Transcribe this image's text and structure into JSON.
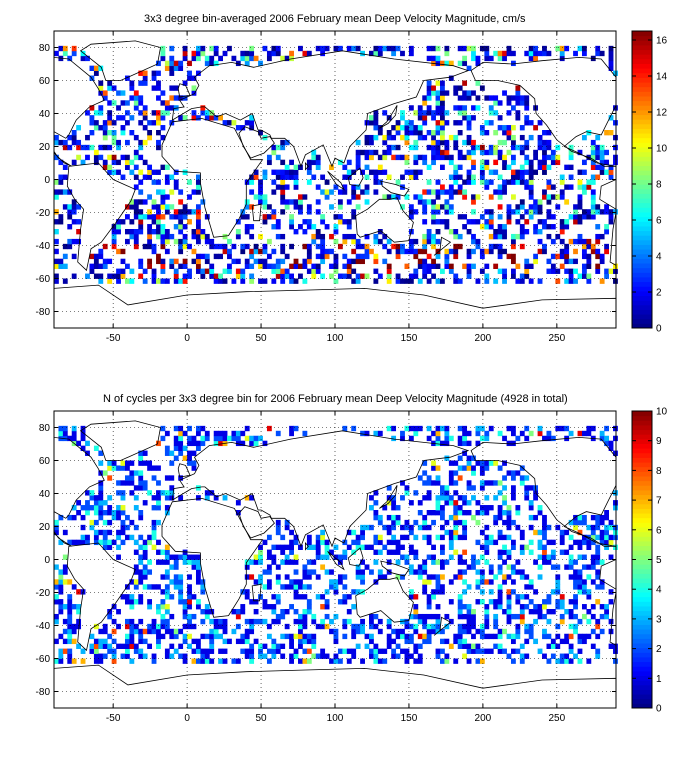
{
  "chart_data": [
    {
      "type": "heatmap",
      "title": "3x3 degree bin-averaged 2006 February mean Deep Velocity Magnitude, cm/s",
      "xlim": [
        -90,
        290
      ],
      "ylim": [
        -90,
        90
      ],
      "xticks": [
        -50,
        0,
        50,
        100,
        150,
        200,
        250
      ],
      "yticks": [
        80,
        60,
        40,
        20,
        0,
        -20,
        -40,
        -60,
        -80
      ],
      "grid": true,
      "colormap": "jet",
      "colorbar": {
        "min": 0,
        "max": 16.5,
        "ticks": [
          0,
          2,
          4,
          6,
          8,
          10,
          12,
          14,
          16
        ],
        "position": "right"
      },
      "bin_size_deg": 3,
      "seed": 11
    },
    {
      "type": "heatmap",
      "title": "N of cycles per 3x3 degree bin for 2006 February mean Deep Velocity Magnitude (4928 in total)",
      "xlim": [
        -90,
        290
      ],
      "ylim": [
        -90,
        90
      ],
      "xticks": [
        -50,
        0,
        50,
        100,
        150,
        200,
        250
      ],
      "yticks": [
        80,
        60,
        40,
        20,
        0,
        -20,
        -40,
        -60,
        -80
      ],
      "grid": true,
      "colormap": "jet",
      "colorbar": {
        "min": 0,
        "max": 10,
        "ticks": [
          0,
          1,
          2,
          3,
          4,
          5,
          6,
          7,
          8,
          9,
          10
        ],
        "position": "right"
      },
      "bin_size_deg": 3,
      "seed": 29
    }
  ]
}
